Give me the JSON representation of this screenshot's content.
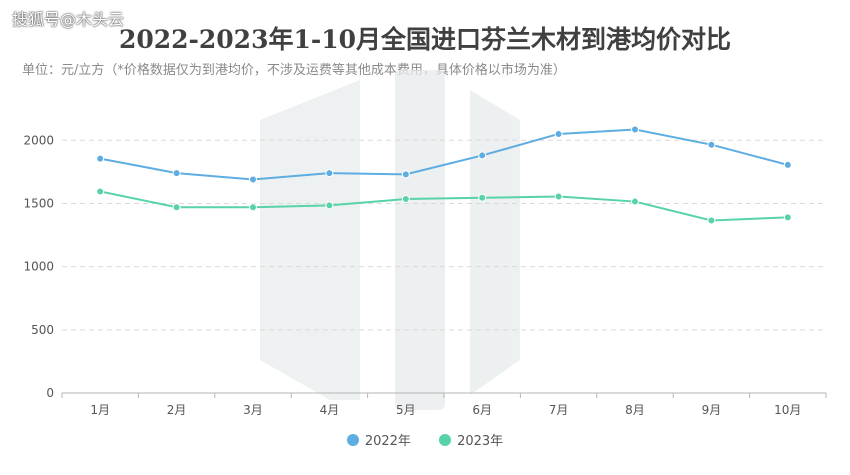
{
  "watermark": "搜狐号@木头云",
  "chart_data": {
    "type": "line",
    "title": "2022-2023年1-10月全国进口芬兰木材到港均价对比",
    "subtitle": "单位：元/立方（*价格数据仅为到港均价，不涉及运费等其他成本费用，具体价格以市场为准）",
    "categories": [
      "1月",
      "2月",
      "3月",
      "4月",
      "5月",
      "6月",
      "7月",
      "8月",
      "9月",
      "10月"
    ],
    "ylim": [
      0,
      2200
    ],
    "yticks": [
      0,
      500,
      1000,
      1500,
      2000
    ],
    "grid": true,
    "legend_position": "bottom",
    "series": [
      {
        "name": "2022年",
        "color": "#5dade2",
        "values": [
          1855,
          1740,
          1690,
          1740,
          1730,
          1880,
          2050,
          2085,
          1965,
          1805
        ]
      },
      {
        "name": "2023年",
        "color": "#58d3a8",
        "values": [
          1595,
          1470,
          1470,
          1485,
          1535,
          1545,
          1555,
          1515,
          1365,
          1390
        ]
      }
    ]
  }
}
